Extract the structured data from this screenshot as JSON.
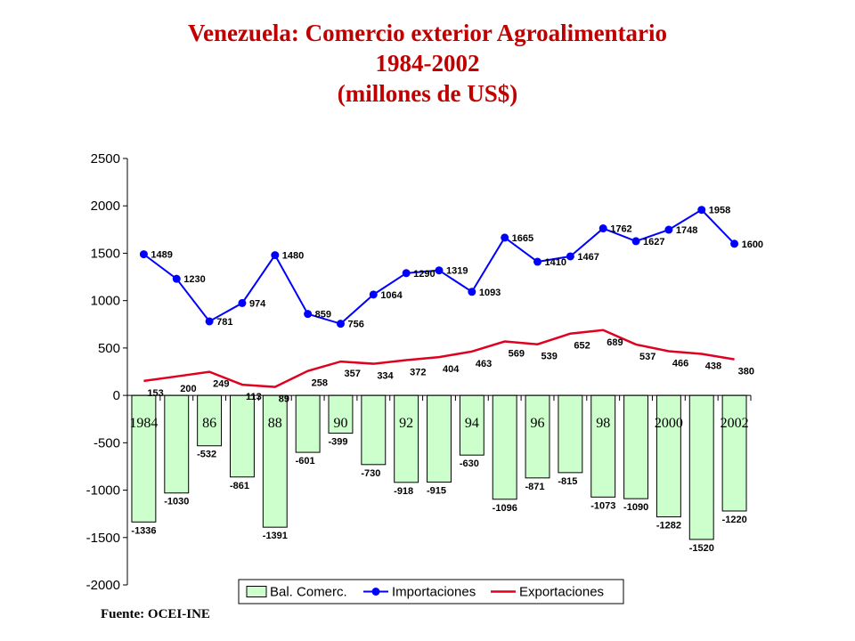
{
  "title": {
    "line1": "Venezuela: Comercio exterior Agroalimentario",
    "line2": "1984-2002",
    "line3": "(millones de US$)"
  },
  "source": "Fuente: OCEI-INE",
  "colors": {
    "title": "#c00000",
    "bar_fill": "#ccffcc",
    "importaciones": "#0000ff",
    "exportaciones": "#e00020"
  },
  "chart_data": {
    "type": "bar",
    "x": [
      1984,
      1985,
      1986,
      1987,
      1988,
      1989,
      1990,
      1991,
      1992,
      1993,
      1994,
      1995,
      1996,
      1997,
      1998,
      1999,
      2000,
      2001,
      2002
    ],
    "x_tick_labels": [
      "1984",
      "",
      "86",
      "",
      "88",
      "",
      "90",
      "",
      "92",
      "",
      "94",
      "",
      "96",
      "",
      "98",
      "",
      "2000",
      "",
      "2002"
    ],
    "y_ticks": [
      2500,
      2000,
      1500,
      1000,
      500,
      0,
      -500,
      -1000,
      -1500,
      -2000
    ],
    "ylim": [
      -2000,
      2500
    ],
    "grid": false,
    "legend_position": "bottom",
    "series": [
      {
        "name": "Bal. Comerc.",
        "type": "bar",
        "values": [
          -1336,
          -1030,
          -532,
          -861,
          -1391,
          -601,
          -399,
          -730,
          -918,
          -915,
          -630,
          -1096,
          -871,
          -815,
          -1073,
          -1090,
          -1282,
          -1520,
          -1220
        ]
      },
      {
        "name": "Importaciones",
        "type": "line",
        "marker": "circle",
        "values": [
          1489,
          1230,
          781,
          974,
          1480,
          859,
          756,
          1064,
          1290,
          1319,
          1093,
          1665,
          1410,
          1467,
          1762,
          1627,
          1748,
          1958,
          1600
        ]
      },
      {
        "name": "Exportaciones",
        "type": "line",
        "values": [
          153,
          200,
          249,
          113,
          89,
          258,
          357,
          334,
          372,
          404,
          463,
          569,
          539,
          652,
          689,
          537,
          466,
          438,
          380
        ]
      }
    ]
  }
}
